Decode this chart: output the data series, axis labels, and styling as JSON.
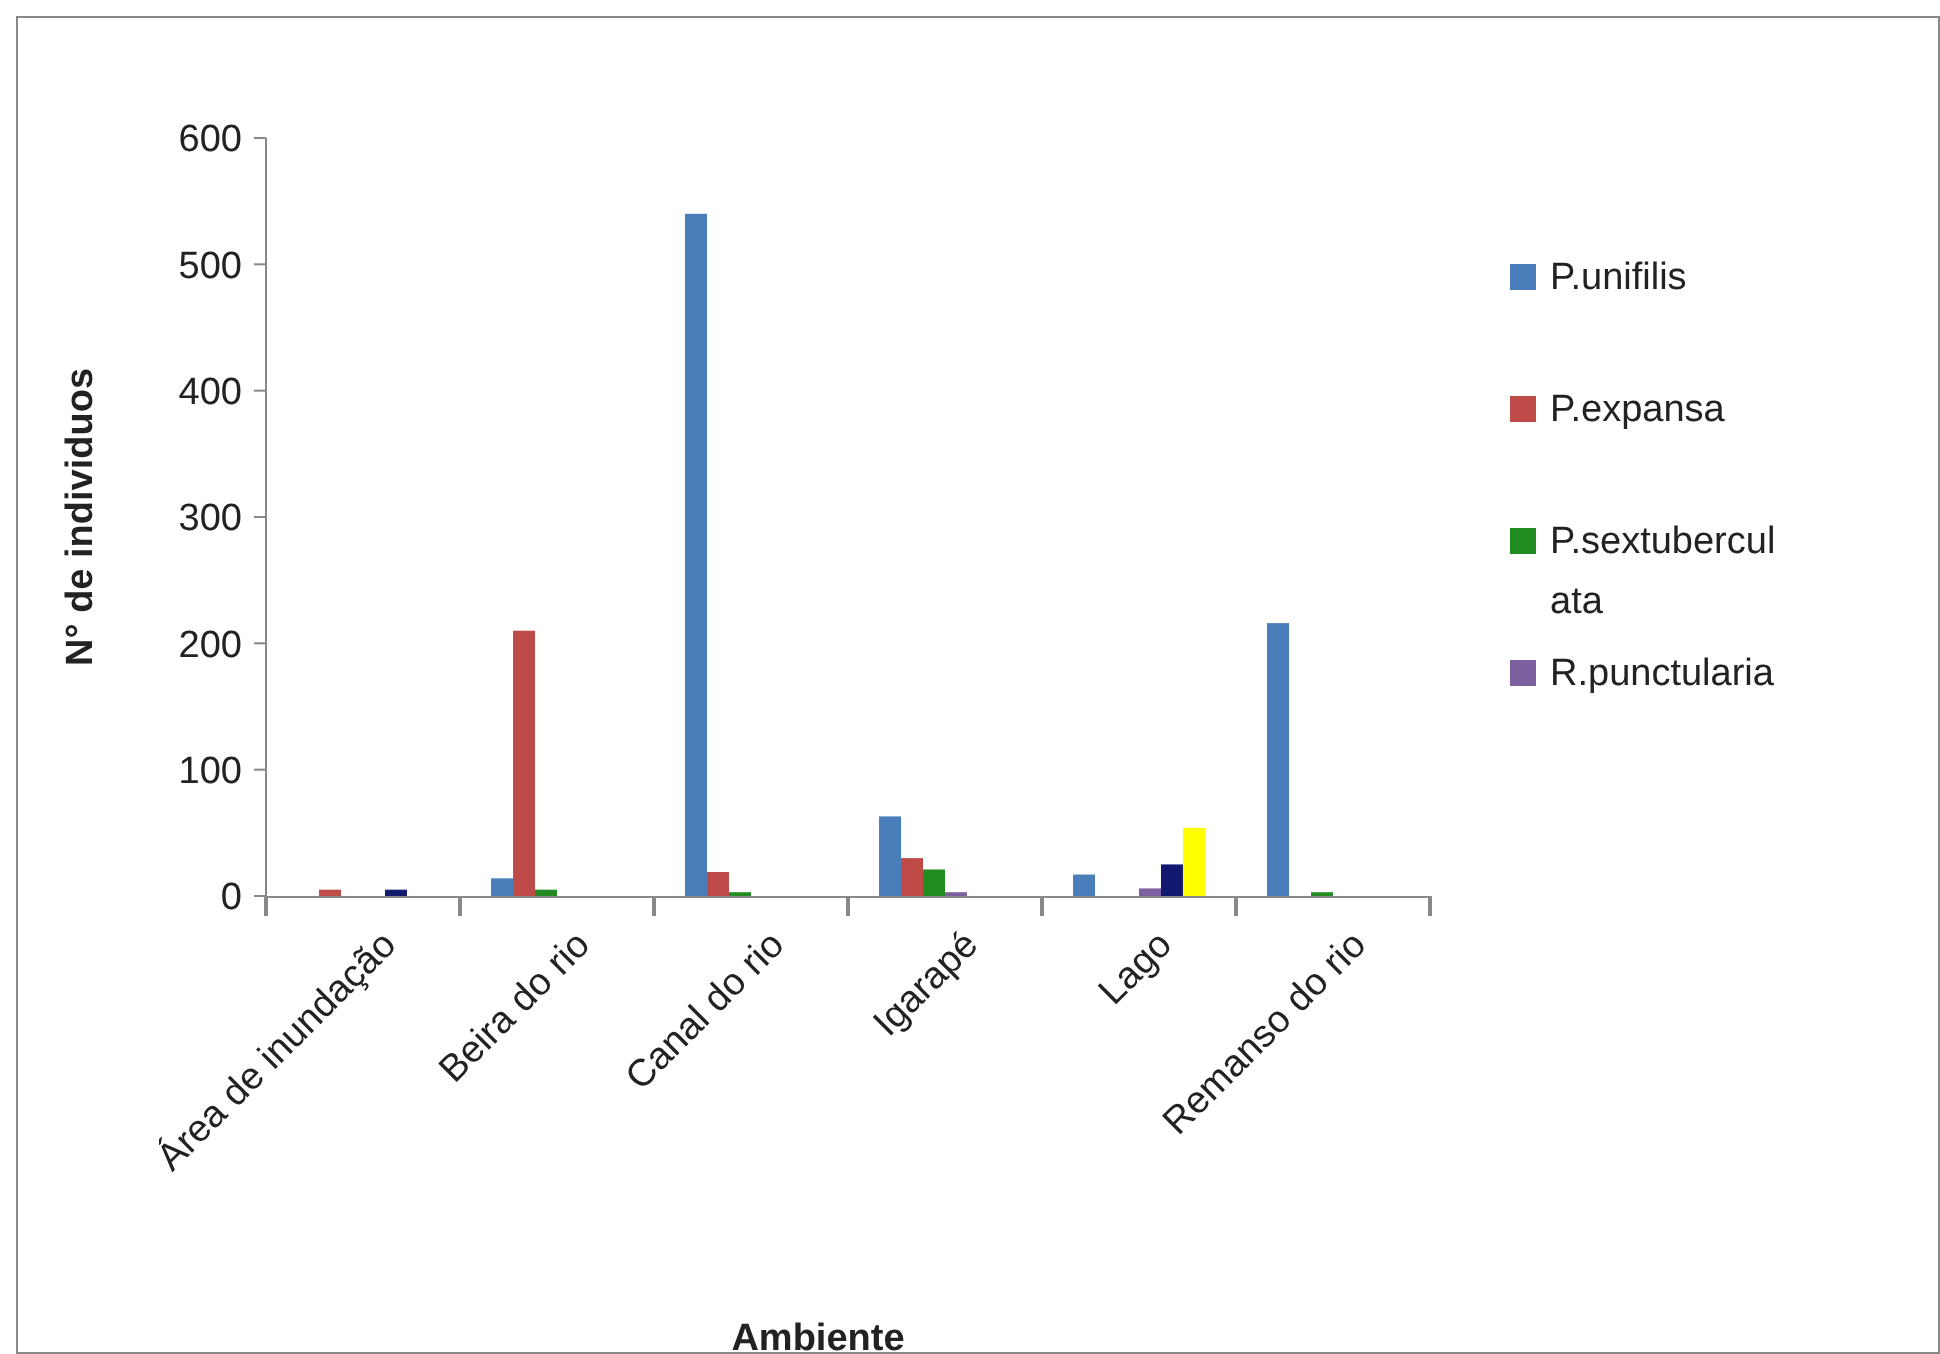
{
  "chart_data": {
    "type": "bar",
    "xlabel": "Ambiente",
    "ylabel": "N° de individuos",
    "categories": [
      "Área de inundação",
      "Beira do rio",
      "Canal do rio",
      "Igarapé",
      "Lago",
      "Remanso do rio"
    ],
    "series": [
      {
        "name": "P.unifilis",
        "color": "#4a7ebb",
        "values": [
          null,
          14,
          540,
          63,
          17,
          216
        ]
      },
      {
        "name": "P.expansa",
        "color": "#be4b48",
        "values": [
          5,
          210,
          19,
          30,
          null,
          null
        ]
      },
      {
        "name": "P.sextuberculata",
        "color": "#228b22",
        "values": [
          null,
          5,
          3,
          21,
          null,
          3
        ]
      },
      {
        "name": "R.punctularia",
        "color": "#7d60a0",
        "values": [
          null,
          null,
          null,
          3,
          6,
          null
        ]
      },
      {
        "color": "#111a6e",
        "values": [
          5,
          null,
          null,
          null,
          25,
          null
        ]
      },
      {
        "color": "#ffff00",
        "values": [
          null,
          null,
          null,
          null,
          54,
          null
        ]
      }
    ],
    "ylim": [
      0,
      600
    ],
    "yticks": [
      0,
      100,
      200,
      300,
      400,
      500,
      600
    ],
    "grid": false,
    "legend": "right"
  }
}
